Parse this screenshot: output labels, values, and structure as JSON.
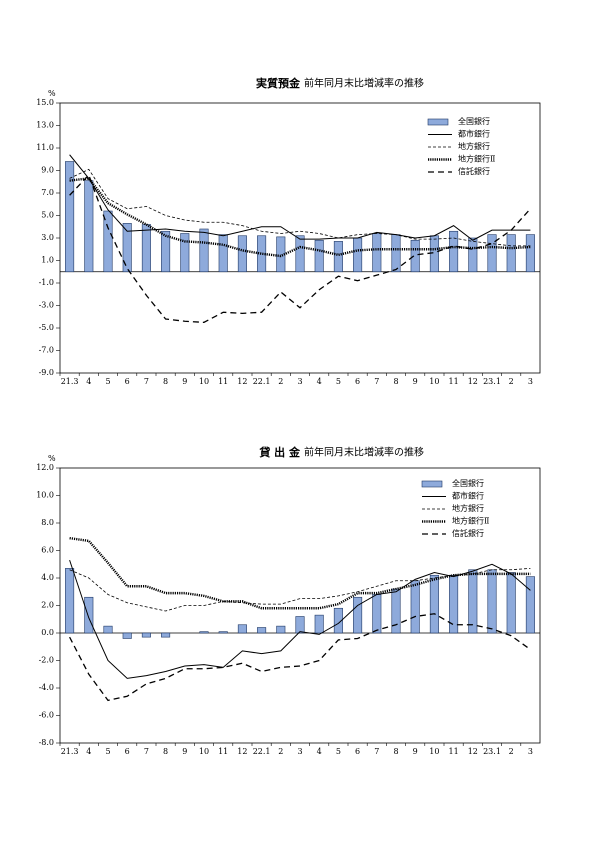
{
  "chart_data": [
    {
      "type": "combo",
      "title": "実質預金",
      "subtitle": "前年同月末比増減率の推移",
      "y_unit": "%",
      "categories": [
        "21.3",
        "4",
        "5",
        "6",
        "7",
        "8",
        "9",
        "10",
        "11",
        "12",
        "22.1",
        "2",
        "3",
        "4",
        "5",
        "6",
        "7",
        "8",
        "9",
        "10",
        "11",
        "12",
        "23.1",
        "2",
        "3"
      ],
      "ylim": [
        -9,
        15
      ],
      "yticks": [
        {
          "value": -9,
          "label": "-9.0"
        },
        {
          "value": -7,
          "label": "-7.0"
        },
        {
          "value": -5,
          "label": "-5.0"
        },
        {
          "value": -3,
          "label": "-3.0"
        },
        {
          "value": -1,
          "label": "-1.0"
        },
        {
          "value": 1,
          "label": "1.0"
        },
        {
          "value": 3,
          "label": "3.0"
        },
        {
          "value": 5,
          "label": "5.0"
        },
        {
          "value": 7,
          "label": "7.0"
        },
        {
          "value": 9,
          "label": "9.0"
        },
        {
          "value": 11,
          "label": "11.0"
        },
        {
          "value": 13,
          "label": "13.0"
        },
        {
          "value": 15,
          "label": "15.0"
        }
      ],
      "series": [
        {
          "name": "全国銀行",
          "type": "bar",
          "color": "#8eaadb",
          "values": [
            9.8,
            8.1,
            5.4,
            4.3,
            4.2,
            3.6,
            3.4,
            3.8,
            3.3,
            3.2,
            3.2,
            3.1,
            3.2,
            2.8,
            2.7,
            3.0,
            3.4,
            3.3,
            2.8,
            3.2,
            3.6,
            3.0,
            3.3,
            3.3,
            3.3
          ]
        },
        {
          "name": "都市銀行",
          "type": "line",
          "line_style": "solid",
          "color": "#000000",
          "values": [
            10.4,
            8.3,
            5.5,
            3.6,
            3.7,
            3.8,
            3.6,
            3.5,
            3.2,
            3.6,
            4.0,
            4.0,
            2.9,
            2.9,
            3.0,
            3.0,
            3.5,
            3.3,
            3.0,
            3.2,
            4.1,
            2.8,
            3.7,
            3.7,
            3.7
          ]
        },
        {
          "name": "地方銀行",
          "type": "line",
          "line_style": "dashed-thin",
          "color": "#000000",
          "values": [
            8.3,
            9.1,
            6.5,
            5.6,
            5.8,
            5.0,
            4.6,
            4.4,
            4.4,
            4.1,
            3.6,
            3.4,
            3.6,
            3.4,
            3.0,
            3.3,
            3.4,
            3.3,
            2.9,
            2.9,
            3.0,
            2.7,
            2.5,
            2.3,
            2.3
          ]
        },
        {
          "name": "地方銀行Ⅱ",
          "type": "line",
          "line_style": "dotted-thick",
          "color": "#000000",
          "values": [
            8.1,
            8.3,
            6.1,
            5.1,
            4.2,
            3.2,
            2.7,
            2.6,
            2.4,
            1.9,
            1.6,
            1.4,
            2.2,
            1.9,
            1.5,
            1.9,
            2.0,
            2.0,
            2.0,
            2.0,
            2.2,
            2.1,
            2.2,
            2.1,
            2.2
          ]
        },
        {
          "name": "信託銀行",
          "type": "line",
          "line_style": "dashed",
          "color": "#000000",
          "values": [
            6.8,
            8.6,
            3.9,
            0.3,
            -2.1,
            -4.2,
            -4.4,
            -4.5,
            -3.6,
            -3.7,
            -3.6,
            -1.8,
            -3.2,
            -1.6,
            -0.4,
            -0.8,
            -0.3,
            0.2,
            1.5,
            1.7,
            2.3,
            2.0,
            2.5,
            3.7,
            5.6
          ]
        }
      ]
    },
    {
      "type": "combo",
      "title": "貸 出 金",
      "subtitle": "前年同月末比増減率の推移",
      "y_unit": "%",
      "categories": [
        "21.3",
        "4",
        "5",
        "6",
        "7",
        "8",
        "9",
        "10",
        "11",
        "12",
        "22.1",
        "2",
        "3",
        "4",
        "5",
        "6",
        "7",
        "8",
        "9",
        "10",
        "11",
        "12",
        "23.1",
        "2",
        "3"
      ],
      "ylim": [
        -8,
        12
      ],
      "yticks": [
        {
          "value": -8,
          "label": "-8.0"
        },
        {
          "value": -6,
          "label": "-6.0"
        },
        {
          "value": -4,
          "label": "-4.0"
        },
        {
          "value": -2,
          "label": "-2.0"
        },
        {
          "value": 0,
          "label": "0.0"
        },
        {
          "value": 2,
          "label": "2.0"
        },
        {
          "value": 4,
          "label": "4.0"
        },
        {
          "value": 6,
          "label": "6.0"
        },
        {
          "value": 8,
          "label": "8.0"
        },
        {
          "value": 10,
          "label": "10.0"
        },
        {
          "value": 12,
          "label": "12.0"
        }
      ],
      "series": [
        {
          "name": "全国銀行",
          "type": "bar",
          "color": "#8eaadb",
          "values": [
            4.7,
            2.6,
            0.5,
            -0.4,
            -0.3,
            -0.3,
            0.0,
            0.1,
            0.1,
            0.6,
            0.4,
            0.5,
            1.2,
            1.3,
            1.8,
            2.6,
            2.8,
            3.2,
            3.8,
            4.2,
            4.2,
            4.6,
            4.6,
            4.4,
            4.1
          ]
        },
        {
          "name": "都市銀行",
          "type": "line",
          "line_style": "solid",
          "color": "#000000",
          "values": [
            5.3,
            1.1,
            -2.0,
            -3.3,
            -3.1,
            -2.8,
            -2.4,
            -2.3,
            -2.5,
            -1.3,
            -1.5,
            -1.3,
            0.1,
            -0.1,
            0.7,
            2.0,
            2.8,
            3.0,
            3.9,
            4.4,
            4.1,
            4.5,
            5.0,
            4.3,
            3.1
          ]
        },
        {
          "name": "地方銀行",
          "type": "line",
          "line_style": "dashed-thin",
          "color": "#000000",
          "values": [
            4.6,
            4.0,
            2.8,
            2.2,
            1.9,
            1.6,
            2.0,
            2.0,
            2.3,
            2.2,
            2.1,
            2.1,
            2.5,
            2.5,
            2.7,
            3.0,
            3.4,
            3.8,
            3.8,
            4.0,
            4.2,
            4.3,
            4.6,
            4.6,
            4.7
          ]
        },
        {
          "name": "地方銀行Ⅱ",
          "type": "line",
          "line_style": "dotted-thick",
          "color": "#000000",
          "values": [
            6.9,
            6.7,
            5.1,
            3.4,
            3.4,
            2.9,
            2.9,
            2.7,
            2.3,
            2.3,
            1.8,
            1.8,
            1.8,
            1.8,
            2.1,
            2.9,
            2.9,
            3.2,
            3.5,
            3.9,
            4.2,
            4.3,
            4.3,
            4.3,
            4.3
          ]
        },
        {
          "name": "信託銀行",
          "type": "line",
          "line_style": "dashed",
          "color": "#000000",
          "values": [
            -0.3,
            -3.0,
            -4.9,
            -4.6,
            -3.7,
            -3.3,
            -2.6,
            -2.6,
            -2.5,
            -2.2,
            -2.8,
            -2.5,
            -2.4,
            -2.0,
            -0.5,
            -0.4,
            0.2,
            0.6,
            1.2,
            1.4,
            0.6,
            0.6,
            0.3,
            -0.2,
            -1.2
          ]
        }
      ]
    }
  ]
}
